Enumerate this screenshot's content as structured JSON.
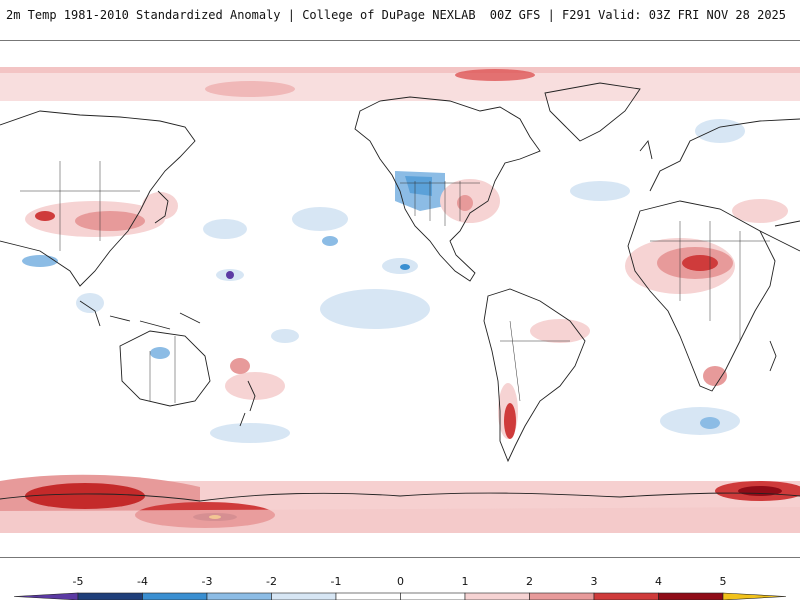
{
  "header": {
    "title": "2m Temp 1981-2010 Standardized Anomaly | College of DuPage NEXLAB",
    "run_info": "00Z GFS | F291 Valid: 03Z FRI NOV 28 2025"
  },
  "colorbar": {
    "tick_labels": [
      "-5",
      "-4",
      "-3",
      "-2",
      "-1",
      "0",
      "1",
      "2",
      "3",
      "4",
      "5"
    ],
    "colors": [
      "#5b3aa3",
      "#1f3f7a",
      "#3a8fd1",
      "#8cbce5",
      "#d7e6f4",
      "#ffffff",
      "#ffffff",
      "#f6d3d3",
      "#e79a9a",
      "#cf3b3b",
      "#8f0c17",
      "#f1c21b"
    ]
  },
  "legend_colors": {
    "strong_cold": "#3a8fd1",
    "cold": "#8cbce5",
    "slight_cold": "#d7e6f4",
    "slight_warm": "#f6d3d3",
    "warm": "#e79a9a",
    "strong_warm": "#cf3b3b",
    "extreme_warm": "#8f0c17"
  }
}
